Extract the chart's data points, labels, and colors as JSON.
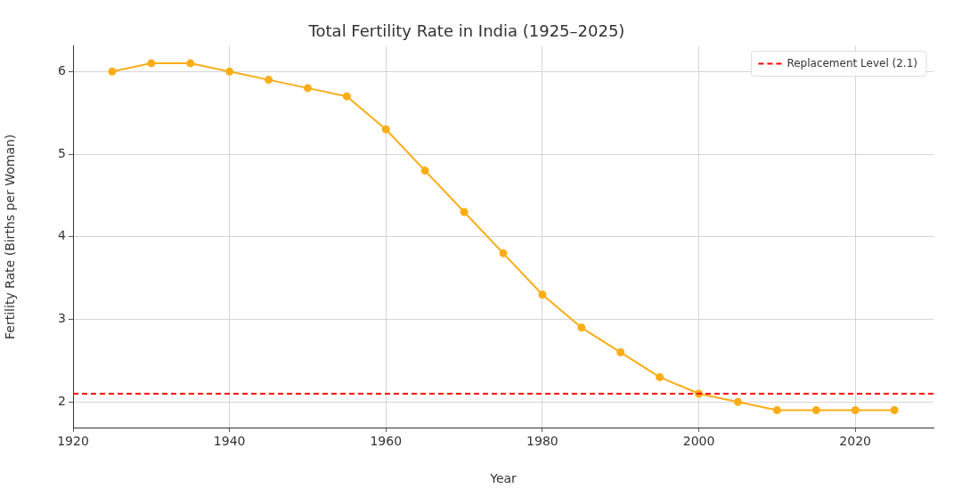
{
  "chart_data": {
    "type": "line",
    "title": "Total Fertility Rate in India (1925–2025)",
    "xlabel": "Year",
    "ylabel": "Fertility Rate (Births per Woman)",
    "x": [
      1925,
      1930,
      1935,
      1940,
      1945,
      1950,
      1955,
      1960,
      1965,
      1970,
      1975,
      1980,
      1985,
      1990,
      1995,
      2000,
      2005,
      2010,
      2015,
      2020,
      2025
    ],
    "series": [
      {
        "color": "#fbad18",
        "values": [
          6.0,
          6.1,
          6.1,
          6.0,
          5.9,
          5.8,
          5.7,
          5.3,
          4.8,
          4.3,
          3.8,
          3.3,
          2.9,
          2.6,
          2.3,
          2.1,
          2.0,
          1.9,
          1.9,
          1.9,
          1.9
        ]
      }
    ],
    "xlim": [
      1920,
      2030
    ],
    "xticks": [
      1920,
      1940,
      1960,
      1980,
      2000,
      2020
    ],
    "ylim": [
      1.69,
      6.31
    ],
    "yticks": [
      2,
      3,
      4,
      5,
      6
    ],
    "ref_lines": [
      {
        "axis": "y",
        "value": 2.1,
        "label": "Replacement Level (2.1)",
        "color": "#ff0000",
        "line_style": "dashed"
      }
    ],
    "grid": true,
    "legend": "top right",
    "marker": "circle",
    "line_style": "solid"
  }
}
